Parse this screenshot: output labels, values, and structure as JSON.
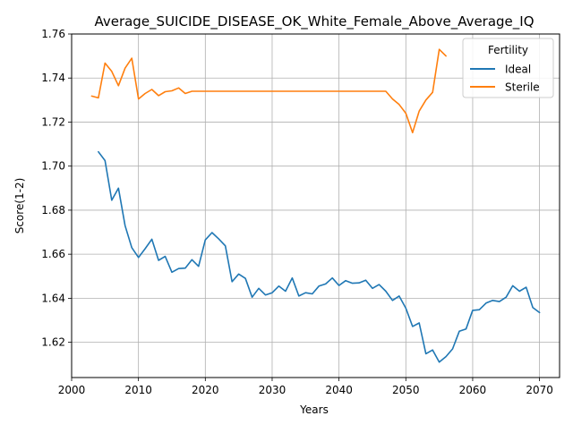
{
  "chart_data": {
    "type": "line",
    "title": "Average_SUICIDE_DISEASE_OK_White_Female_Above_Average_IQ",
    "xlabel": "Years",
    "ylabel": "Score(1-2)",
    "xlim": [
      2000,
      2073
    ],
    "ylim": [
      1.604,
      1.76
    ],
    "xticks": [
      2000,
      2010,
      2020,
      2030,
      2040,
      2050,
      2060,
      2070
    ],
    "yticks": [
      1.62,
      1.64,
      1.66,
      1.68,
      1.7,
      1.72,
      1.74,
      1.76
    ],
    "grid": true,
    "legend": {
      "title": "Fertility",
      "placement": "top-right"
    },
    "series": [
      {
        "name": "Ideal",
        "color": "#1f77b4",
        "x": [
          2004,
          2005,
          2006,
          2007,
          2008,
          2009,
          2010,
          2011,
          2012,
          2013,
          2014,
          2015,
          2016,
          2017,
          2018,
          2019,
          2020,
          2021,
          2022,
          2023,
          2024,
          2025,
          2026,
          2027,
          2028,
          2029,
          2030,
          2031,
          2032,
          2033,
          2034,
          2035,
          2036,
          2037,
          2038,
          2039,
          2040,
          2041,
          2042,
          2043,
          2044,
          2045,
          2046,
          2047,
          2048,
          2049,
          2050,
          2051,
          2052,
          2053,
          2054,
          2055,
          2056,
          2057,
          2058,
          2059,
          2060,
          2061,
          2062,
          2063,
          2064,
          2065,
          2066,
          2067,
          2068,
          2069,
          2070
        ],
        "y": [
          1.7065,
          1.7025,
          1.6845,
          1.69,
          1.673,
          1.663,
          1.6585,
          1.6625,
          1.6668,
          1.6572,
          1.659,
          1.6518,
          1.6535,
          1.6537,
          1.6575,
          1.6545,
          1.6665,
          1.6698,
          1.667,
          1.6638,
          1.6475,
          1.651,
          1.649,
          1.6405,
          1.6445,
          1.6415,
          1.6425,
          1.6455,
          1.6432,
          1.6492,
          1.641,
          1.6425,
          1.642,
          1.6455,
          1.6465,
          1.6492,
          1.6458,
          1.648,
          1.6468,
          1.647,
          1.6482,
          1.6445,
          1.6462,
          1.6432,
          1.639,
          1.641,
          1.6355,
          1.6272,
          1.6288,
          1.6148,
          1.6165,
          1.611,
          1.6135,
          1.617,
          1.625,
          1.626,
          1.6345,
          1.6348,
          1.6378,
          1.639,
          1.6385,
          1.6405,
          1.6457,
          1.6432,
          1.645,
          1.6358,
          1.6335
        ]
      },
      {
        "name": "Sterile",
        "color": "#ff7f0e",
        "x": [
          2003,
          2004,
          2005,
          2006,
          2007,
          2008,
          2009,
          2010,
          2011,
          2012,
          2013,
          2014,
          2015,
          2016,
          2017,
          2018,
          2019,
          2020,
          2021,
          2022,
          2023,
          2024,
          2025,
          2026,
          2027,
          2028,
          2029,
          2030,
          2031,
          2032,
          2033,
          2034,
          2035,
          2036,
          2037,
          2038,
          2039,
          2040,
          2041,
          2042,
          2043,
          2044,
          2045,
          2046,
          2047,
          2048,
          2049,
          2050,
          2051,
          2052,
          2053,
          2054,
          2055,
          2056
        ],
        "y": [
          1.7318,
          1.731,
          1.7468,
          1.743,
          1.7365,
          1.7445,
          1.749,
          1.7305,
          1.733,
          1.7348,
          1.732,
          1.7338,
          1.7342,
          1.7355,
          1.733,
          1.734,
          1.734,
          1.734,
          1.734,
          1.734,
          1.734,
          1.734,
          1.734,
          1.734,
          1.734,
          1.734,
          1.734,
          1.734,
          1.734,
          1.734,
          1.734,
          1.734,
          1.734,
          1.734,
          1.734,
          1.734,
          1.734,
          1.734,
          1.734,
          1.734,
          1.734,
          1.734,
          1.734,
          1.734,
          1.734,
          1.7305,
          1.728,
          1.724,
          1.7152,
          1.725,
          1.73,
          1.7335,
          1.753,
          1.75
        ]
      }
    ]
  }
}
